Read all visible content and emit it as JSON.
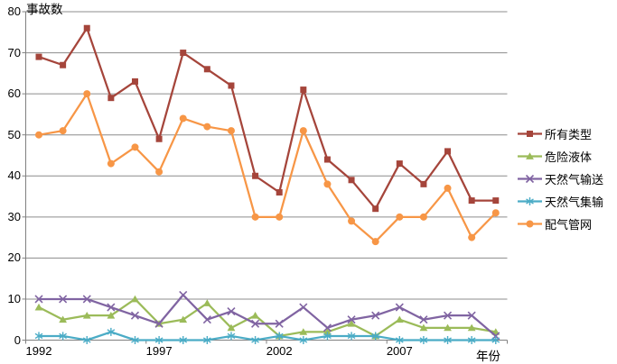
{
  "chart_data": {
    "type": "line",
    "y_title": "事故数",
    "x_title": "年份",
    "x": [
      1992,
      1993,
      1994,
      1995,
      1996,
      1997,
      1998,
      1999,
      2000,
      2001,
      2002,
      2003,
      2004,
      2005,
      2006,
      2007,
      2008,
      2009,
      2010,
      2011
    ],
    "xtick_labels": [
      "1992",
      "1997",
      "2002",
      "2007"
    ],
    "yticks": [
      0,
      10,
      20,
      30,
      40,
      50,
      60,
      70,
      80
    ],
    "ylim": [
      0,
      80
    ],
    "grid": true,
    "legend_position": "right",
    "grid_color": "#8C8C8C",
    "axis_color": "#808080",
    "series": [
      {
        "name": "所有类型",
        "marker": "square",
        "color": "#A5453B",
        "values": [
          69,
          67,
          76,
          59,
          63,
          49,
          70,
          66,
          62,
          40,
          36,
          61,
          44,
          39,
          32,
          43,
          38,
          46,
          34,
          34
        ]
      },
      {
        "name": "危险液体",
        "marker": "triangle",
        "color": "#9BBB59",
        "values": [
          8,
          5,
          6,
          6,
          10,
          4,
          5,
          9,
          3,
          6,
          1,
          2,
          2,
          4,
          1,
          5,
          3,
          3,
          3,
          2
        ]
      },
      {
        "name": "天然气输送",
        "marker": "x",
        "color": "#8064A2",
        "values": [
          10,
          10,
          10,
          8,
          6,
          4,
          11,
          5,
          7,
          4,
          4,
          8,
          3,
          5,
          6,
          8,
          5,
          6,
          6,
          1
        ]
      },
      {
        "name": "天然气集输",
        "marker": "asterisk",
        "color": "#4BACC6",
        "values": [
          1,
          1,
          0,
          2,
          0,
          0,
          0,
          0,
          1,
          0,
          1,
          0,
          1,
          1,
          1,
          0,
          0,
          0,
          0,
          0
        ]
      },
      {
        "name": "配气管网",
        "marker": "circle",
        "color": "#F79646",
        "values": [
          50,
          51,
          60,
          43,
          47,
          41,
          54,
          52,
          51,
          30,
          30,
          51,
          38,
          29,
          24,
          30,
          30,
          37,
          25,
          31
        ]
      }
    ]
  }
}
